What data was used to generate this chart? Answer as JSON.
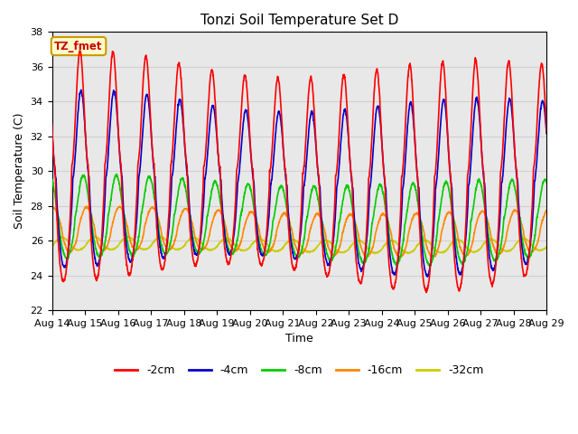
{
  "title": "Tonzi Soil Temperature Set D",
  "xlabel": "Time",
  "ylabel": "Soil Temperature (C)",
  "ylim": [
    22,
    38
  ],
  "annotation": "TZ_fmet",
  "annotation_bg": "#ffffcc",
  "annotation_border": "#cc9900",
  "series": {
    "-2cm": {
      "color": "#ff0000",
      "lw": 1.2
    },
    "-4cm": {
      "color": "#0000cc",
      "lw": 1.2
    },
    "-8cm": {
      "color": "#00cc00",
      "lw": 1.2
    },
    "-16cm": {
      "color": "#ff8800",
      "lw": 1.2
    },
    "-32cm": {
      "color": "#cccc00",
      "lw": 1.2
    }
  },
  "xtick_labels": [
    "Aug 14",
    "Aug 15",
    "Aug 16",
    "Aug 17",
    "Aug 18",
    "Aug 19",
    "Aug 20",
    "Aug 21",
    "Aug 22",
    "Aug 23",
    "Aug 24",
    "Aug 25",
    "Aug 26",
    "Aug 27",
    "Aug 28",
    "Aug 29"
  ],
  "grid_color": "#d0d0d0",
  "bg_color": "#e8e8e8"
}
